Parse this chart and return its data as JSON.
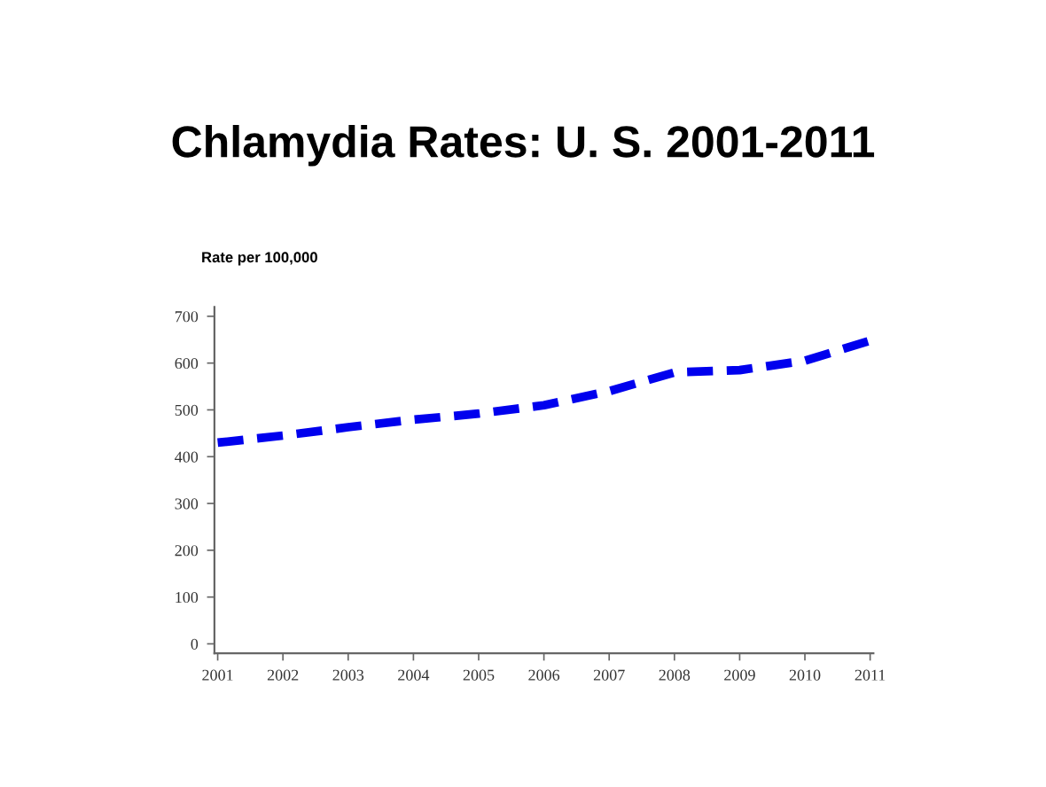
{
  "chart_data": {
    "type": "line",
    "title": "Chlamydia Rates: U. S. 2001-2011",
    "ylabel": "Rate per 100,000",
    "x": [
      2001,
      2002,
      2003,
      2004,
      2005,
      2006,
      2007,
      2008,
      2009,
      2010,
      2011
    ],
    "series": [
      {
        "color": "#0000ee",
        "values": [
          430,
          445,
          463,
          479,
          492,
          510,
          540,
          580,
          585,
          605,
          648
        ]
      }
    ],
    "xlim": [
      2000.95,
      2011.05
    ],
    "xticks": [
      2001,
      2002,
      2003,
      2004,
      2005,
      2006,
      2007,
      2008,
      2009,
      2010,
      2011
    ],
    "ylim": [
      -20,
      720
    ],
    "yticks": [
      0,
      100,
      200,
      300,
      400,
      500,
      600,
      700
    ],
    "grid": false,
    "marker": "none",
    "line_style": "dashed"
  }
}
